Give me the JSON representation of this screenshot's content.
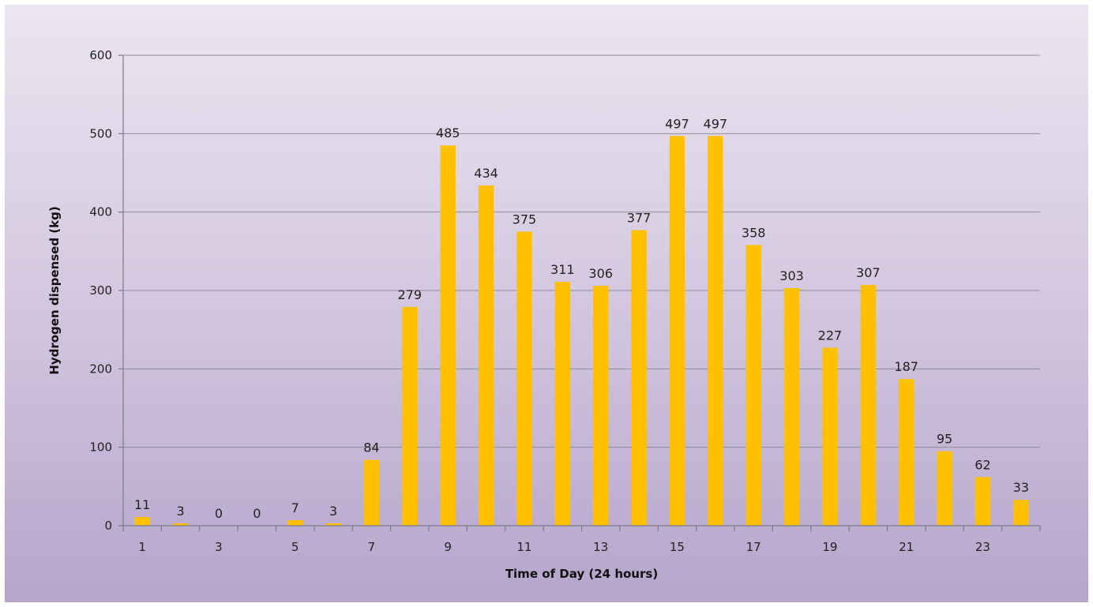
{
  "chart_data": {
    "type": "bar",
    "title": "",
    "xlabel": "Time of Day (24 hours)",
    "ylabel": "Hydrogen dispensed (kg)",
    "ylim": [
      0,
      600
    ],
    "yticks": [
      0,
      100,
      200,
      300,
      400,
      500,
      600
    ],
    "grid": true,
    "legend": "none",
    "categories": [
      1,
      2,
      3,
      4,
      5,
      6,
      7,
      8,
      9,
      10,
      11,
      12,
      13,
      14,
      15,
      16,
      17,
      18,
      19,
      20,
      21,
      22,
      23,
      24
    ],
    "xtick_labels": [
      "1",
      "",
      "3",
      "",
      "5",
      "",
      "7",
      "",
      "9",
      "",
      "11",
      "",
      "13",
      "",
      "15",
      "",
      "17",
      "",
      "19",
      "",
      "21",
      "",
      "23",
      ""
    ],
    "values": [
      11,
      3,
      0,
      0,
      7,
      3,
      84,
      279,
      485,
      434,
      375,
      311,
      306,
      377,
      497,
      497,
      358,
      303,
      227,
      307,
      187,
      95,
      62,
      33
    ],
    "bar_color": "#ffc000",
    "data_labels": true
  }
}
